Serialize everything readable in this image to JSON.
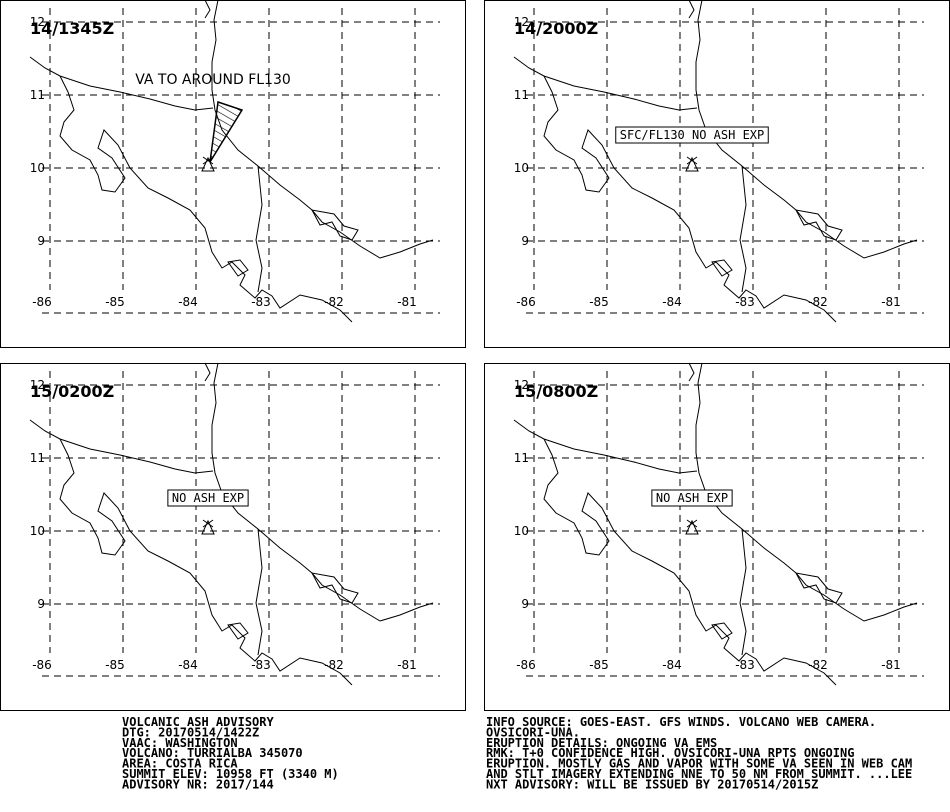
{
  "panels": [
    {
      "time": "14/1345Z",
      "annotation": "VA TO AROUND FL130",
      "annotation_boxed": false,
      "ash_area": true
    },
    {
      "time": "14/2000Z",
      "annotation": "SFC/FL130 NO ASH EXP",
      "annotation_boxed": true,
      "ash_area": false
    },
    {
      "time": "15/0200Z",
      "annotation": "NO ASH EXP",
      "annotation_boxed": true,
      "ash_area": false
    },
    {
      "time": "15/0800Z",
      "annotation": "NO ASH EXP",
      "annotation_boxed": true,
      "ash_area": false
    }
  ],
  "grid": {
    "lat": [
      12,
      11,
      10,
      9
    ],
    "lon": [
      -86,
      -85,
      -84,
      -83,
      -82,
      -81
    ]
  },
  "advisory_left": [
    "VOLCANIC ASH ADVISORY",
    "DTG: 20170514/1422Z",
    "VAAC: WASHINGTON",
    "VOLCANO: TURRIALBA 345070",
    "AREA: COSTA RICA",
    "SUMMIT ELEV: 10958 FT (3340 M)",
    "ADVISORY NR: 2017/144"
  ],
  "advisory_right": [
    "INFO SOURCE: GOES-EAST. GFS WINDS. VOLCANO WEB CAMERA.",
    "OVSICORI-UNA.",
    "ERUPTION DETAILS: ONGOING VA EMS",
    "RMK: T+0 CONFIDENCE HIGH. OVSICORI-UNA RPTS ONGOING",
    "ERUPTION. MOSTLY GAS AND VAPOR WITH SOME VA SEEN IN WEB CAM",
    "AND STLT IMAGERY EXTENDING NNE TO 50 NM FROM SUMMIT. ...LEE",
    "NXT ADVISORY: WILL BE ISSUED BY 20170514/2015Z"
  ]
}
